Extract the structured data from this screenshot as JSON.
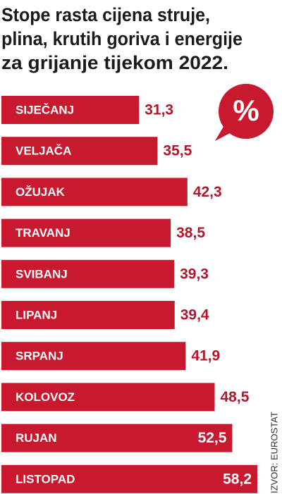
{
  "chart_data": {
    "type": "bar",
    "orientation": "horizontal",
    "title": [
      "Stope rasta cijena struje,",
      "plina, krutih goriva i energije",
      "za grijanje tijekom 2022."
    ],
    "badge": "%",
    "source": "IZVOR: EUROSTAT",
    "categories": [
      "SIJEČANJ",
      "VELJAČA",
      "OŽUJAK",
      "TRAVANJ",
      "SVIBANJ",
      "LIPANJ",
      "SRPANJ",
      "KOLOVOZ",
      "RUJAN",
      "LISTOPAD"
    ],
    "values": [
      31.3,
      35.5,
      42.3,
      38.5,
      39.3,
      39.4,
      41.9,
      48.5,
      52.5,
      58.2
    ],
    "value_labels": [
      "31,3",
      "35,5",
      "42,3",
      "38,5",
      "39,3",
      "39,4",
      "41,9",
      "48,5",
      "52,5",
      "58,2"
    ],
    "color": "#c8192f"
  }
}
